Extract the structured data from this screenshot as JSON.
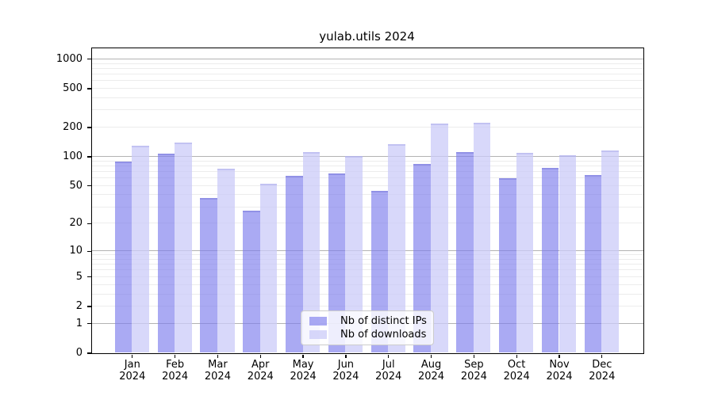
{
  "title": "yulab.utils 2024",
  "chart_data": {
    "type": "bar",
    "title": "yulab.utils 2024",
    "scale": "log(1+x)",
    "grid": true,
    "legend_position": "lower center",
    "categories": [
      "Jan",
      "Feb",
      "Mar",
      "Apr",
      "May",
      "Jun",
      "Jul",
      "Aug",
      "Sep",
      "Oct",
      "Nov",
      "Dec"
    ],
    "year_label": "2024",
    "y_ticks": [
      0,
      1,
      2,
      5,
      10,
      20,
      50,
      100,
      200,
      500,
      1000
    ],
    "ylim": [
      0,
      1100
    ],
    "xlabel": "",
    "ylabel": "",
    "series": [
      {
        "name": "Nb of distinct IPs",
        "color": "rgba(124,124,237,0.65)",
        "color_hex": "#aaaaf3",
        "values": [
          88,
          107,
          37,
          27,
          63,
          67,
          44,
          84,
          112,
          60,
          76,
          64
        ]
      },
      {
        "name": "Nb of downloads",
        "color": "rgba(203,203,248,0.75)",
        "color_hex": "#d8d8fa",
        "values": [
          130,
          140,
          75,
          52,
          110,
          102,
          135,
          218,
          224,
          108,
          103,
          115
        ]
      }
    ]
  }
}
